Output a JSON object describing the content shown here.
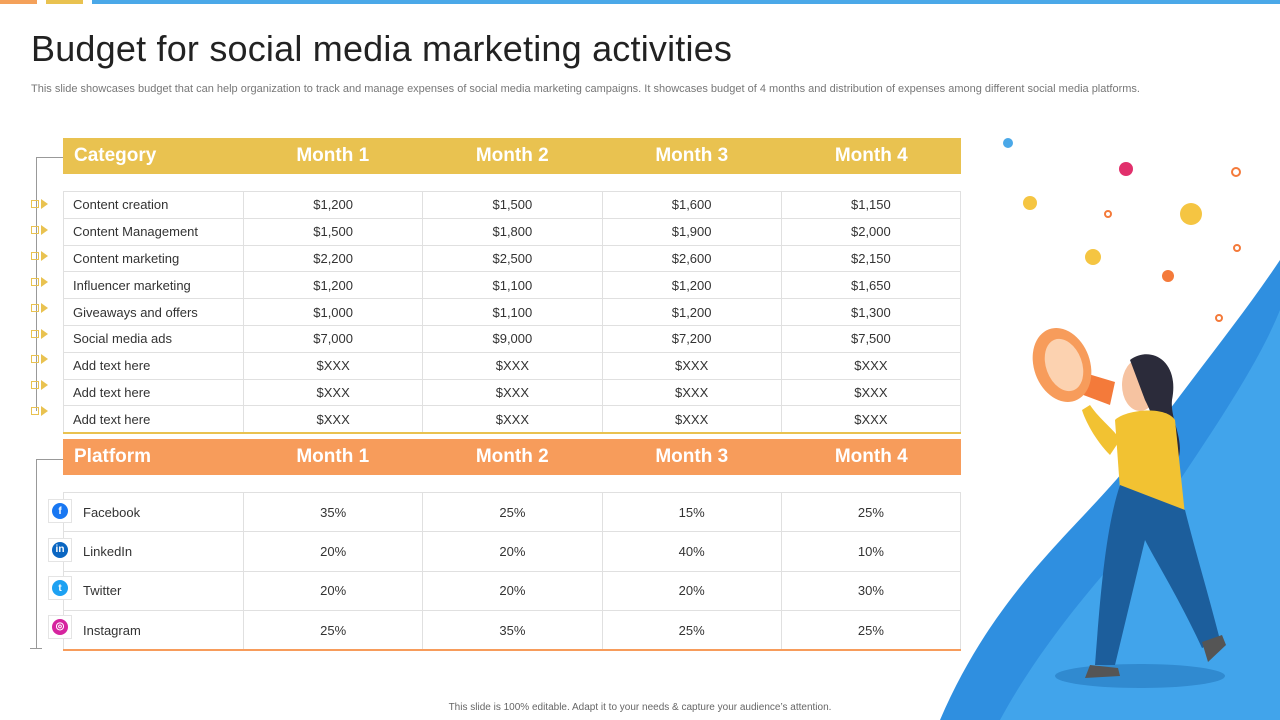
{
  "title": "Budget for social media marketing activities",
  "subtitle": "This slide showcases budget that can help organization to track and manage expenses of social media marketing campaigns. It showcases budget of 4 months and distribution of expenses among different social media platforms.",
  "footer": "This slide is 100% editable.  Adapt it to your needs & capture your audience’s attention.",
  "colors": {
    "accent_yellow": "#e9c250",
    "accent_orange": "#f79c5b",
    "accent_blue": "#4aa8e8"
  },
  "category_table": {
    "headers": [
      "Category",
      "Month 1",
      "Month 2",
      "Month 3",
      "Month 4"
    ],
    "rows": [
      {
        "label": "Content creation",
        "values": [
          "$1,200",
          "$1,500",
          "$1,600",
          "$1,150"
        ]
      },
      {
        "label": "Content Management",
        "values": [
          "$1,500",
          "$1,800",
          "$1,900",
          "$2,000"
        ]
      },
      {
        "label": "Content marketing",
        "values": [
          "$2,200",
          "$2,500",
          "$2,600",
          "$2,150"
        ]
      },
      {
        "label": "Influencer  marketing",
        "values": [
          "$1,200",
          "$1,100",
          "$1,200",
          "$1,650"
        ]
      },
      {
        "label": "Giveaways  and offers",
        "values": [
          "$1,000",
          "$1,100",
          "$1,200",
          "$1,300"
        ]
      },
      {
        "label": "Social media ads",
        "values": [
          "$7,000",
          "$9,000",
          "$7,200",
          "$7,500"
        ]
      },
      {
        "label": "Add text here",
        "values": [
          "$XXX",
          "$XXX",
          "$XXX",
          "$XXX"
        ]
      },
      {
        "label": "Add text here",
        "values": [
          "$XXX",
          "$XXX",
          "$XXX",
          "$XXX"
        ]
      },
      {
        "label": "Add text here",
        "values": [
          "$XXX",
          "$XXX",
          "$XXX",
          "$XXX"
        ]
      }
    ]
  },
  "platform_table": {
    "headers": [
      "Platform",
      "Month 1",
      "Month 2",
      "Month 3",
      "Month 4"
    ],
    "rows": [
      {
        "label": "Facebook",
        "icon": "facebook-icon",
        "icon_glyph": "f",
        "values": [
          "35%",
          "25%",
          "15%",
          "25%"
        ]
      },
      {
        "label": "LinkedIn",
        "icon": "linkedin-icon",
        "icon_glyph": "in",
        "values": [
          "20%",
          "20%",
          "40%",
          "10%"
        ]
      },
      {
        "label": "Twitter",
        "icon": "twitter-icon",
        "icon_glyph": "t",
        "values": [
          "20%",
          "20%",
          "20%",
          "30%"
        ]
      },
      {
        "label": "Instagram",
        "icon": "instagram-icon",
        "icon_glyph": "◎",
        "values": [
          "25%",
          "35%",
          "25%",
          "25%"
        ]
      }
    ]
  }
}
